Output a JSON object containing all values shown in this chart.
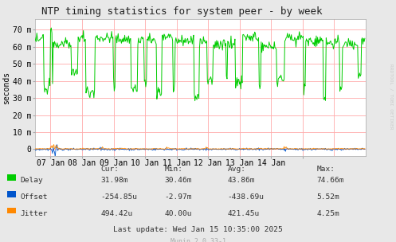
{
  "title": "NTP timing statistics for system peer - by week",
  "ylabel": "seconds",
  "background_color": "#e8e8e8",
  "plot_bg_color": "#ffffff",
  "grid_color": "#ffaaaa",
  "title_fontsize": 9,
  "axis_fontsize": 7,
  "tick_fontsize": 7,
  "delay_color": "#00cc00",
  "offset_color": "#0055cc",
  "jitter_color": "#ff8800",
  "watermark_color": "#cccccc",
  "watermark_text": "RRDTOOL / TOBI OETIKER",
  "munin_text": "Munin 2.0.33-1",
  "last_update": "Last update: Wed Jan 15 10:35:00 2025",
  "stats_headers": [
    "Cur:",
    "Min:",
    "Avg:",
    "Max:"
  ],
  "stats_delay": [
    "31.98m",
    "30.46m",
    "43.86m",
    "74.66m"
  ],
  "stats_offset": [
    "-254.85u",
    "-2.97m",
    "-438.69u",
    "5.52m"
  ],
  "stats_jitter": [
    "494.42u",
    "40.00u",
    "421.45u",
    "4.25m"
  ],
  "xmin": 0,
  "xmax": 504,
  "ymin": -4,
  "ymax": 76,
  "yticks": [
    0,
    10,
    20,
    30,
    40,
    50,
    60,
    70
  ],
  "ytick_labels": [
    "0",
    "10 m",
    "20 m",
    "30 m",
    "40 m",
    "50 m",
    "60 m",
    "70 m"
  ],
  "xtick_positions": [
    24,
    72,
    120,
    168,
    216,
    264,
    312,
    360,
    408
  ],
  "xtick_labels": [
    "07 Jan",
    "08 Jan",
    "09 Jan",
    "10 Jan",
    "11 Jan",
    "12 Jan",
    "13 Jan",
    "14 Jan",
    ""
  ],
  "vgrid_positions": [
    24,
    72,
    120,
    168,
    216,
    264,
    312,
    360,
    408,
    456
  ]
}
